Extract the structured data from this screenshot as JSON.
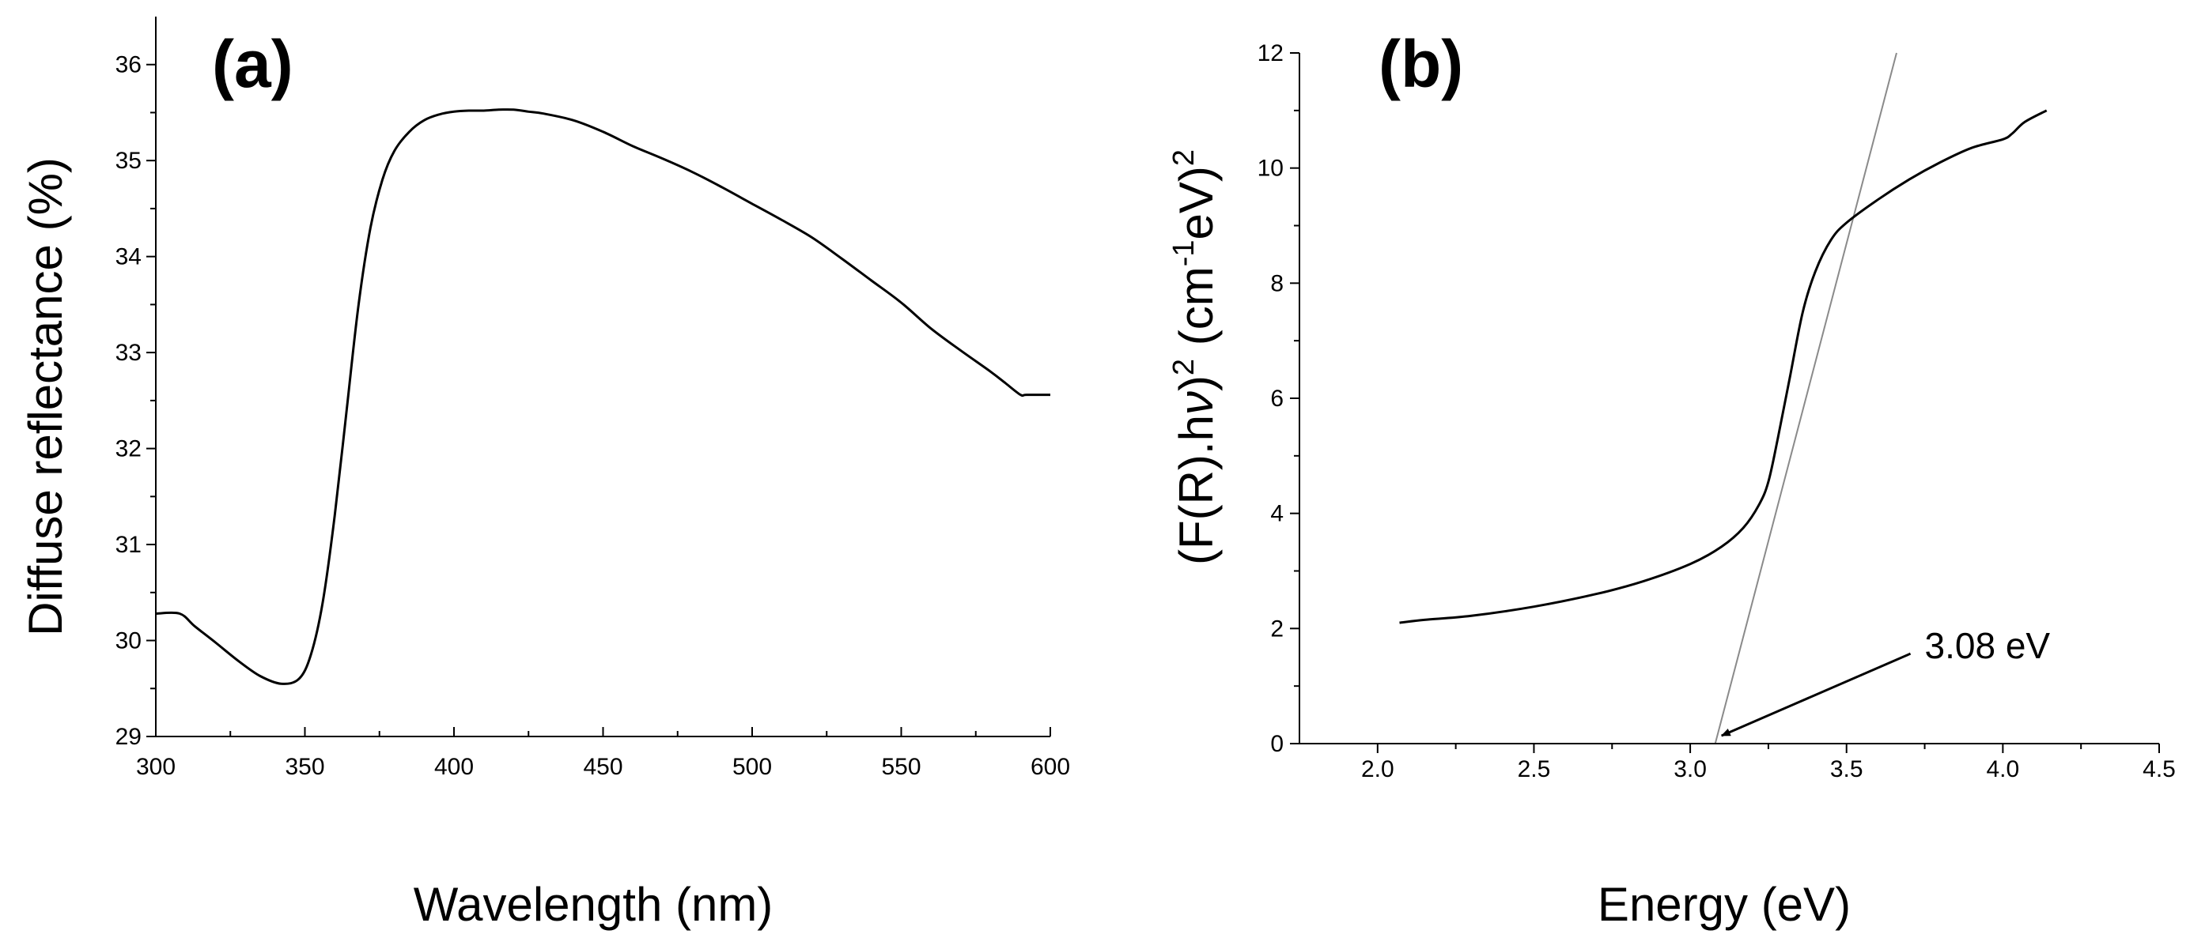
{
  "chart_data": [
    {
      "panel_label": "(a)",
      "type": "line",
      "xlabel": "Wavelength (nm)",
      "ylabel": "Diffuse reflectance (%)",
      "xlim": [
        300,
        600
      ],
      "ylim": [
        29,
        36.5
      ],
      "xticks": [
        300,
        350,
        400,
        450,
        500,
        550,
        600
      ],
      "yticks": [
        29,
        30,
        31,
        32,
        33,
        34,
        35,
        36
      ],
      "series": [
        {
          "name": "Diffuse reflectance",
          "x": [
            300,
            308,
            313,
            320,
            328,
            335,
            342,
            348,
            352,
            356,
            360,
            364,
            368,
            372,
            376,
            380,
            385,
            390,
            395,
            400,
            405,
            410,
            415,
            420,
            425,
            430,
            440,
            450,
            460,
            470,
            480,
            490,
            500,
            510,
            520,
            530,
            540,
            550,
            560,
            570,
            580,
            585,
            590,
            592,
            600
          ],
          "y": [
            30.28,
            30.28,
            30.15,
            29.98,
            29.78,
            29.63,
            29.55,
            29.6,
            29.85,
            30.4,
            31.3,
            32.4,
            33.5,
            34.3,
            34.8,
            35.1,
            35.3,
            35.42,
            35.48,
            35.51,
            35.52,
            35.52,
            35.53,
            35.53,
            35.51,
            35.49,
            35.42,
            35.3,
            35.15,
            35.02,
            34.88,
            34.72,
            34.55,
            34.38,
            34.2,
            33.98,
            33.75,
            33.52,
            33.25,
            33.02,
            32.8,
            32.68,
            32.56,
            32.56,
            32.56
          ]
        }
      ]
    },
    {
      "panel_label": "(b)",
      "type": "line",
      "xlabel": "Energy (eV)",
      "ylabel_parts": [
        "(F(R).h",
        "ν",
        ")",
        "2",
        " (cm",
        "-1",
        "eV)",
        "2"
      ],
      "xlim": [
        1.75,
        4.5
      ],
      "ylim": [
        0,
        12
      ],
      "xticks": [
        2.0,
        2.5,
        3.0,
        3.5,
        4.0,
        4.5
      ],
      "xtick_labels": [
        "2.0",
        "2.5",
        "3.0",
        "3.5",
        "4.0",
        "4.5"
      ],
      "yticks": [
        0,
        2,
        4,
        6,
        8,
        10,
        12
      ],
      "series": [
        {
          "name": "(F(R).hν)^2",
          "x": [
            2.07,
            2.15,
            2.3,
            2.5,
            2.7,
            2.85,
            3.0,
            3.1,
            3.17,
            3.22,
            3.25,
            3.28,
            3.32,
            3.36,
            3.4,
            3.45,
            3.5,
            3.6,
            3.7,
            3.8,
            3.9,
            4.0,
            4.03,
            4.07,
            4.14
          ],
          "y": [
            2.1,
            2.15,
            2.22,
            2.38,
            2.6,
            2.82,
            3.12,
            3.42,
            3.75,
            4.15,
            4.55,
            5.3,
            6.4,
            7.5,
            8.2,
            8.75,
            9.05,
            9.45,
            9.8,
            10.1,
            10.35,
            10.5,
            10.6,
            10.8,
            11.0
          ]
        }
      ],
      "fit_line": {
        "x": [
          3.08,
          3.66
        ],
        "y": [
          0,
          12
        ]
      },
      "annotation": {
        "text": "3.08 eV",
        "points_to": {
          "x": 3.08,
          "y": 0
        },
        "text_at": {
          "x": 3.75,
          "y": 1.7
        }
      }
    }
  ]
}
